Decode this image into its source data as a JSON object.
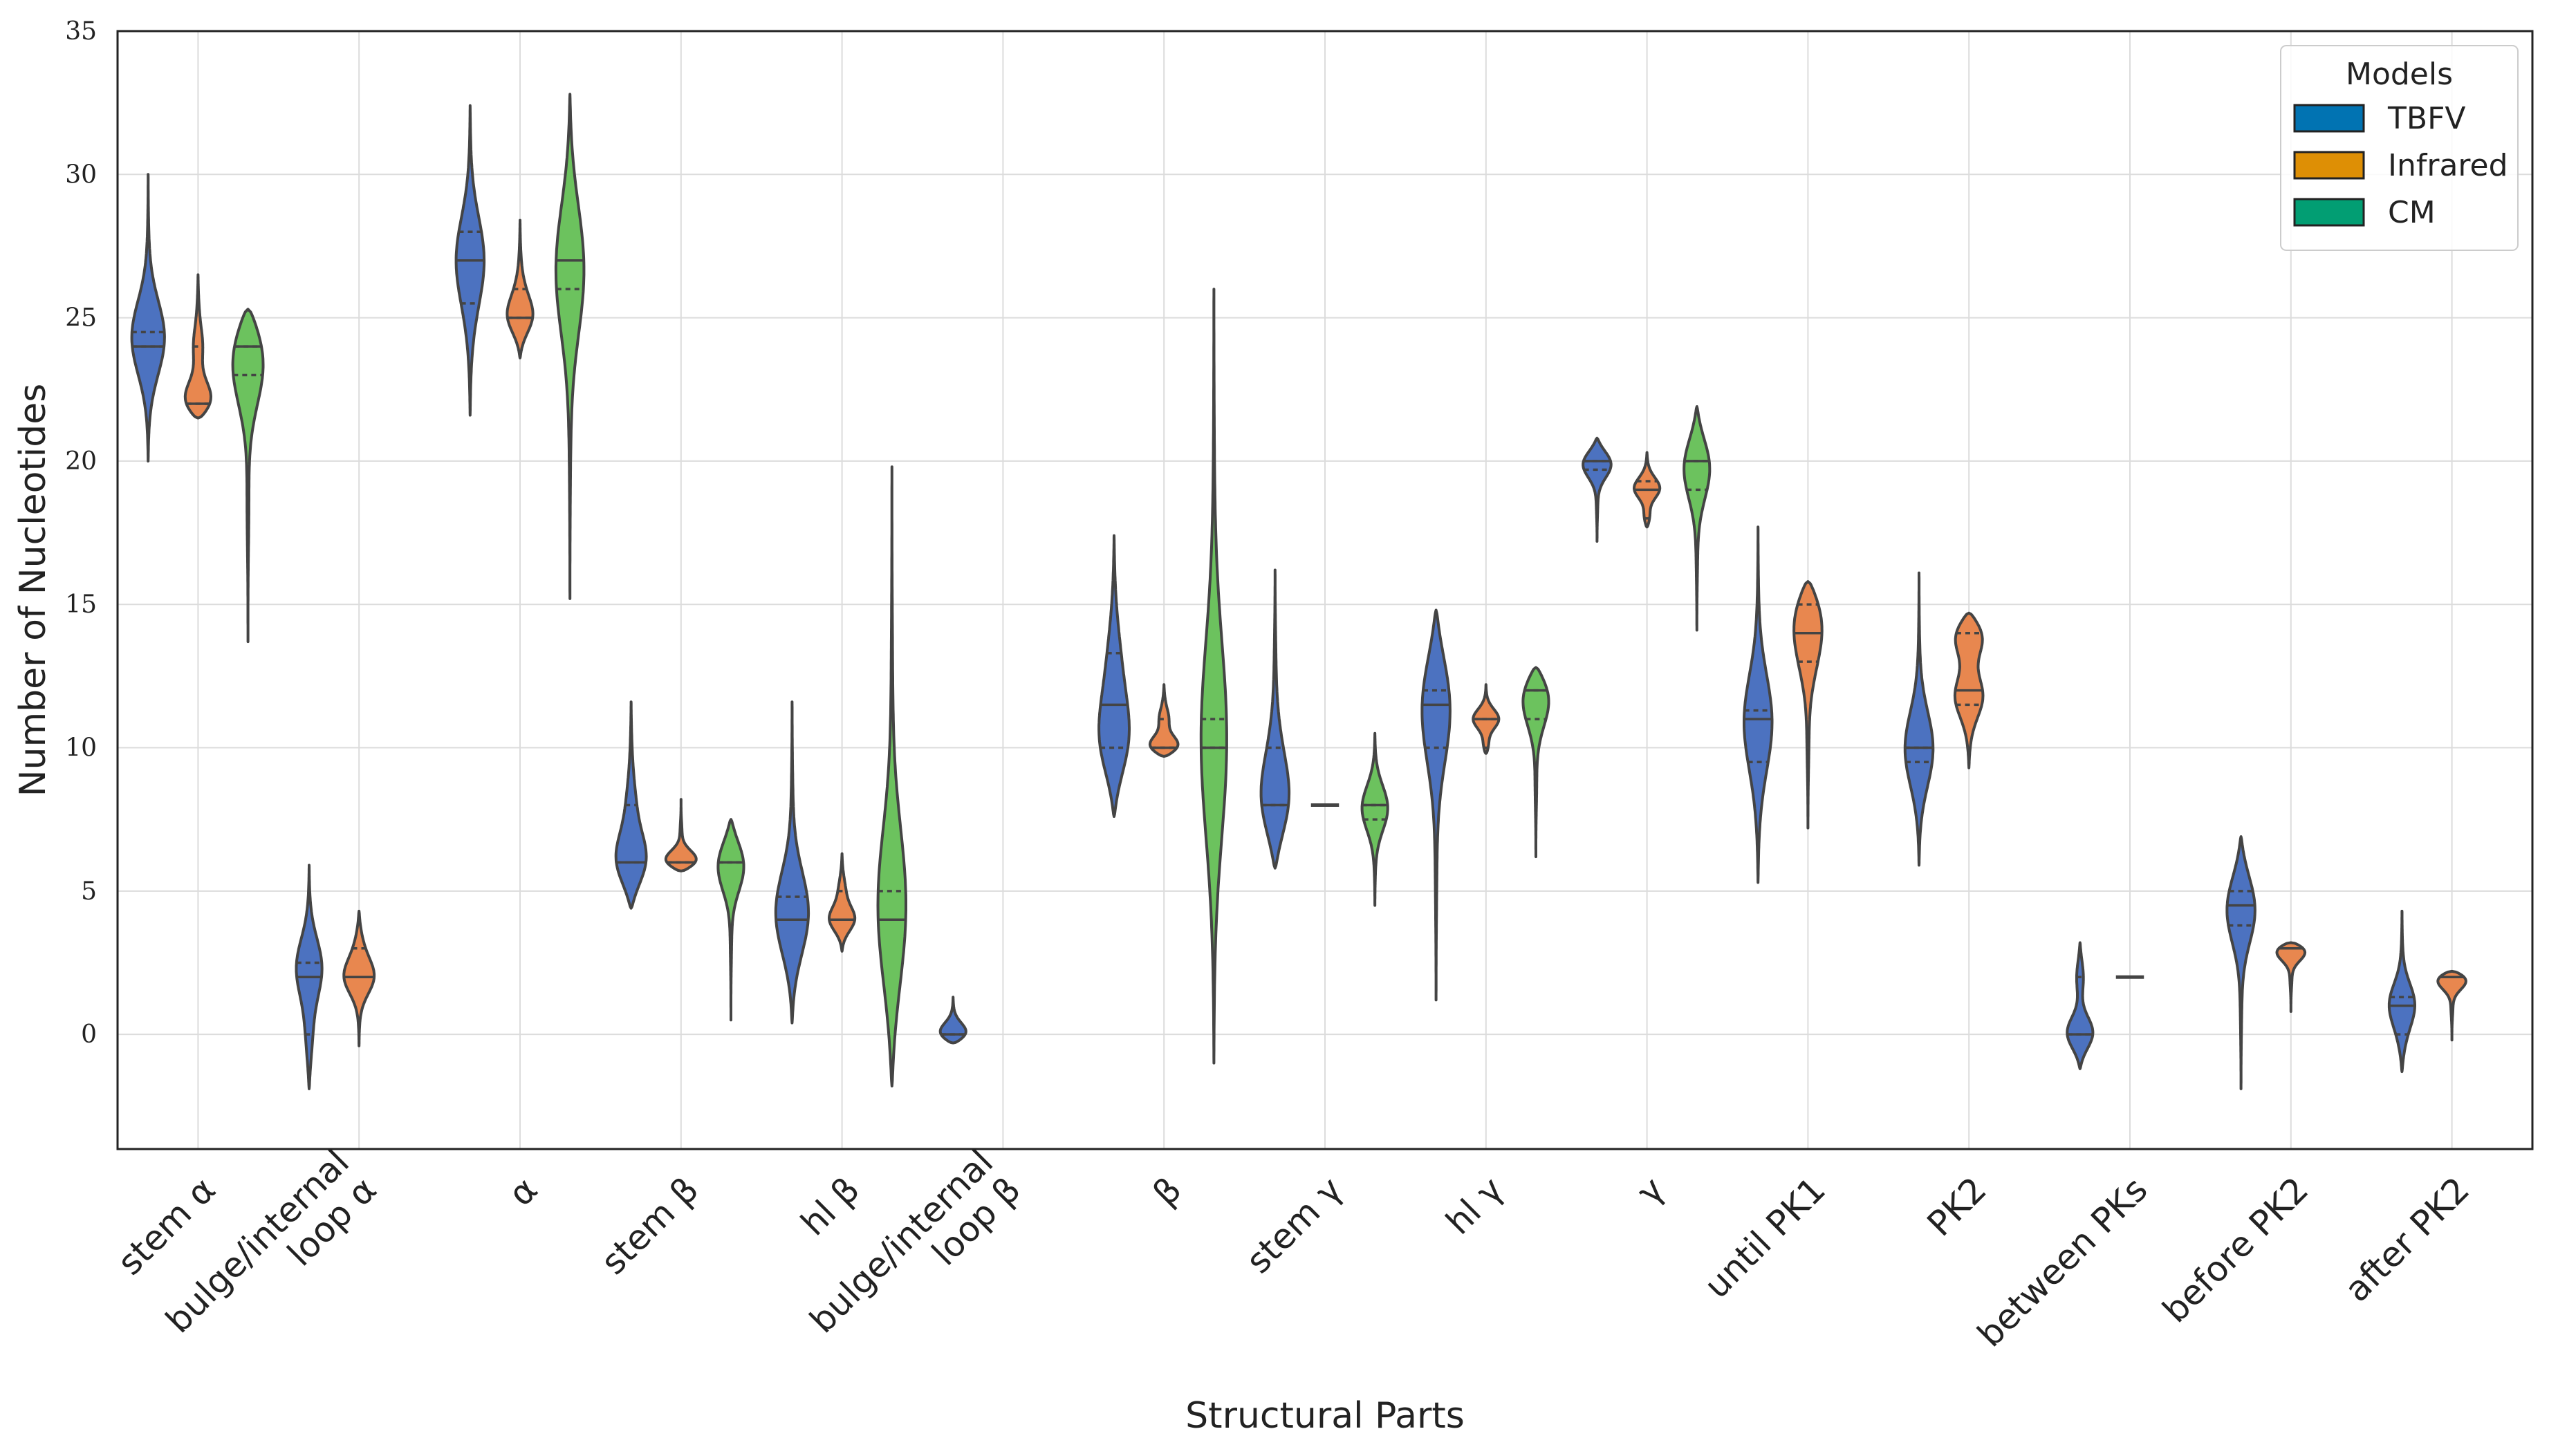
{
  "chart_data": {
    "type": "violin",
    "xlabel": "Structural Parts",
    "ylabel": "Number of Nucleotides",
    "ylim": [
      -4,
      35
    ],
    "yticks": [
      0,
      5,
      10,
      15,
      20,
      25,
      30,
      35
    ],
    "grid": true,
    "legend": {
      "title": "Models",
      "placement": "top-right"
    },
    "categories": [
      [
        "stem α"
      ],
      [
        "bulge/internal",
        "loop α"
      ],
      [
        "α"
      ],
      [
        "stem β"
      ],
      [
        "hl β"
      ],
      [
        "bulge/internal",
        "loop β"
      ],
      [
        "β"
      ],
      [
        "stem γ"
      ],
      [
        "hl γ"
      ],
      [
        "γ"
      ],
      [
        "until PK1"
      ],
      [
        "PK2"
      ],
      [
        "between PKs"
      ],
      [
        "before PK2"
      ],
      [
        "after PK2"
      ]
    ],
    "series": [
      {
        "name": "TBFV",
        "legend_color": "#0173b2",
        "fill": "#4c72c0"
      },
      {
        "name": "Infrared",
        "legend_color": "#de8f05",
        "fill": "#e8874f"
      },
      {
        "name": "CM",
        "legend_color": "#029e73",
        "fill": "#6cc25e"
      }
    ],
    "violins": [
      {
        "cat": 0,
        "series": 0,
        "min": 20,
        "max": 30,
        "q1": 24,
        "median": 24,
        "q3": 24.5,
        "width": 0.7,
        "peak": 24.5
      },
      {
        "cat": 0,
        "series": 1,
        "min": 21.5,
        "max": 26.5,
        "q1": 22,
        "median": 22,
        "q3": 24,
        "width": 0.55,
        "peak": 22
      },
      {
        "cat": 0,
        "series": 2,
        "min": 13.7,
        "max": 25.3,
        "q1": 23,
        "median": 24,
        "q3": 24,
        "width": 0.65,
        "peak": 24
      },
      {
        "cat": 1,
        "series": 0,
        "min": -1.9,
        "max": 5.9,
        "q1": 0,
        "median": 2,
        "q3": 2.5,
        "width": 0.55,
        "peak": 2.5
      },
      {
        "cat": 1,
        "series": 1,
        "min": -0.4,
        "max": 4.3,
        "q1": 2,
        "median": 2,
        "q3": 3,
        "width": 0.65,
        "peak": 2
      },
      {
        "cat": 2,
        "series": 0,
        "min": 21.6,
        "max": 32.4,
        "q1": 25.5,
        "median": 27,
        "q3": 28,
        "width": 0.6,
        "peak": 27
      },
      {
        "cat": 2,
        "series": 1,
        "min": 23.6,
        "max": 28.4,
        "q1": 25,
        "median": 25,
        "q3": 26,
        "width": 0.55,
        "peak": 25
      },
      {
        "cat": 2,
        "series": 2,
        "min": 15.2,
        "max": 32.8,
        "q1": 26,
        "median": 27,
        "q3": 27,
        "width": 0.6,
        "peak": 27
      },
      {
        "cat": 3,
        "series": 0,
        "min": 4.4,
        "max": 11.6,
        "q1": 6,
        "median": 6,
        "q3": 8,
        "width": 0.65,
        "peak": 6
      },
      {
        "cat": 3,
        "series": 1,
        "min": 5.7,
        "max": 8.2,
        "q1": 6,
        "median": 6,
        "q3": 6,
        "width": 0.65,
        "peak": 6
      },
      {
        "cat": 3,
        "series": 2,
        "min": 0.5,
        "max": 7.5,
        "q1": 6,
        "median": 6,
        "q3": 6,
        "width": 0.55,
        "peak": 6
      },
      {
        "cat": 4,
        "series": 0,
        "min": 0.4,
        "max": 11.6,
        "q1": 4,
        "median": 4,
        "q3": 4.8,
        "width": 0.7,
        "peak": 4
      },
      {
        "cat": 4,
        "series": 1,
        "min": 2.9,
        "max": 6.3,
        "q1": 4,
        "median": 4,
        "q3": 5,
        "width": 0.55,
        "peak": 4
      },
      {
        "cat": 4,
        "series": 2,
        "min": -1.8,
        "max": 19.8,
        "q1": 4,
        "median": 4,
        "q3": 5,
        "width": 0.6,
        "peak": 4
      },
      {
        "cat": 5,
        "series": 0,
        "min": -0.3,
        "max": 1.3,
        "q1": 0,
        "median": 0,
        "q3": 0,
        "width": 0.55,
        "peak": 0
      },
      {
        "cat": 6,
        "series": 0,
        "min": 7.6,
        "max": 17.4,
        "q1": 10,
        "median": 11.5,
        "q3": 13.3,
        "width": 0.65,
        "peak": 10
      },
      {
        "cat": 6,
        "series": 1,
        "min": 9.7,
        "max": 12.2,
        "q1": 10,
        "median": 10,
        "q3": 11,
        "width": 0.6,
        "peak": 10
      },
      {
        "cat": 6,
        "series": 2,
        "min": -1,
        "max": 26,
        "q1": 10,
        "median": 10,
        "q3": 11,
        "width": 0.55,
        "peak": 10
      },
      {
        "cat": 7,
        "series": 0,
        "min": 5.8,
        "max": 16.2,
        "q1": 8,
        "median": 8,
        "q3": 10,
        "width": 0.6,
        "peak": 8
      },
      {
        "cat": 7,
        "series": 1,
        "min": 8,
        "max": 8,
        "q1": 8,
        "median": 8,
        "q3": 8,
        "width": 0.6,
        "peak": 8
      },
      {
        "cat": 7,
        "series": 2,
        "min": 4.5,
        "max": 10.5,
        "q1": 7.5,
        "median": 8,
        "q3": 8,
        "width": 0.55,
        "peak": 8
      },
      {
        "cat": 8,
        "series": 0,
        "min": 1.2,
        "max": 14.8,
        "q1": 10,
        "median": 11.5,
        "q3": 12,
        "width": 0.6,
        "peak": 12
      },
      {
        "cat": 8,
        "series": 1,
        "min": 9.8,
        "max": 12.2,
        "q1": 10,
        "median": 11,
        "q3": 11,
        "width": 0.55,
        "peak": 11
      },
      {
        "cat": 8,
        "series": 2,
        "min": 6.2,
        "max": 12.8,
        "q1": 11,
        "median": 12,
        "q3": 12,
        "width": 0.55,
        "peak": 12
      },
      {
        "cat": 9,
        "series": 0,
        "min": 17.2,
        "max": 20.8,
        "q1": 19.7,
        "median": 20,
        "q3": 20,
        "width": 0.6,
        "peak": 20
      },
      {
        "cat": 9,
        "series": 1,
        "min": 17.7,
        "max": 20.3,
        "q1": 18,
        "median": 19,
        "q3": 19.3,
        "width": 0.55,
        "peak": 19
      },
      {
        "cat": 9,
        "series": 2,
        "min": 14.1,
        "max": 21.9,
        "q1": 19,
        "median": 20,
        "q3": 20,
        "width": 0.55,
        "peak": 20
      },
      {
        "cat": 10,
        "series": 0,
        "min": 5.3,
        "max": 17.7,
        "q1": 9.5,
        "median": 11,
        "q3": 11.3,
        "width": 0.6,
        "peak": 11
      },
      {
        "cat": 10,
        "series": 1,
        "min": 7.2,
        "max": 15.8,
        "q1": 13,
        "median": 14,
        "q3": 15,
        "width": 0.6,
        "peak": 15
      },
      {
        "cat": 11,
        "series": 0,
        "min": 5.9,
        "max": 16.1,
        "q1": 9.5,
        "median": 10,
        "q3": 10,
        "width": 0.6,
        "peak": 10
      },
      {
        "cat": 11,
        "series": 1,
        "min": 9.3,
        "max": 14.7,
        "q1": 11.5,
        "median": 12,
        "q3": 14,
        "width": 0.6,
        "peak": 14
      },
      {
        "cat": 12,
        "series": 0,
        "min": -1.2,
        "max": 3.2,
        "q1": 0,
        "median": 0,
        "q3": 2,
        "width": 0.55,
        "peak": 0
      },
      {
        "cat": 12,
        "series": 1,
        "min": 2,
        "max": 2,
        "q1": 2,
        "median": 2,
        "q3": 2,
        "width": 0.6,
        "peak": 2
      },
      {
        "cat": 13,
        "series": 0,
        "min": -1.9,
        "max": 6.9,
        "q1": 3.8,
        "median": 4.5,
        "q3": 5,
        "width": 0.6,
        "peak": 4.5
      },
      {
        "cat": 13,
        "series": 1,
        "min": 0.8,
        "max": 3.2,
        "q1": 3,
        "median": 3,
        "q3": 3,
        "width": 0.6,
        "peak": 3
      },
      {
        "cat": 14,
        "series": 0,
        "min": -1.3,
        "max": 4.3,
        "q1": 0,
        "median": 1,
        "q3": 1.3,
        "width": 0.55,
        "peak": 1
      },
      {
        "cat": 14,
        "series": 1,
        "min": -0.2,
        "max": 2.2,
        "q1": 2,
        "median": 2,
        "q3": 2,
        "width": 0.6,
        "peak": 2
      }
    ]
  }
}
